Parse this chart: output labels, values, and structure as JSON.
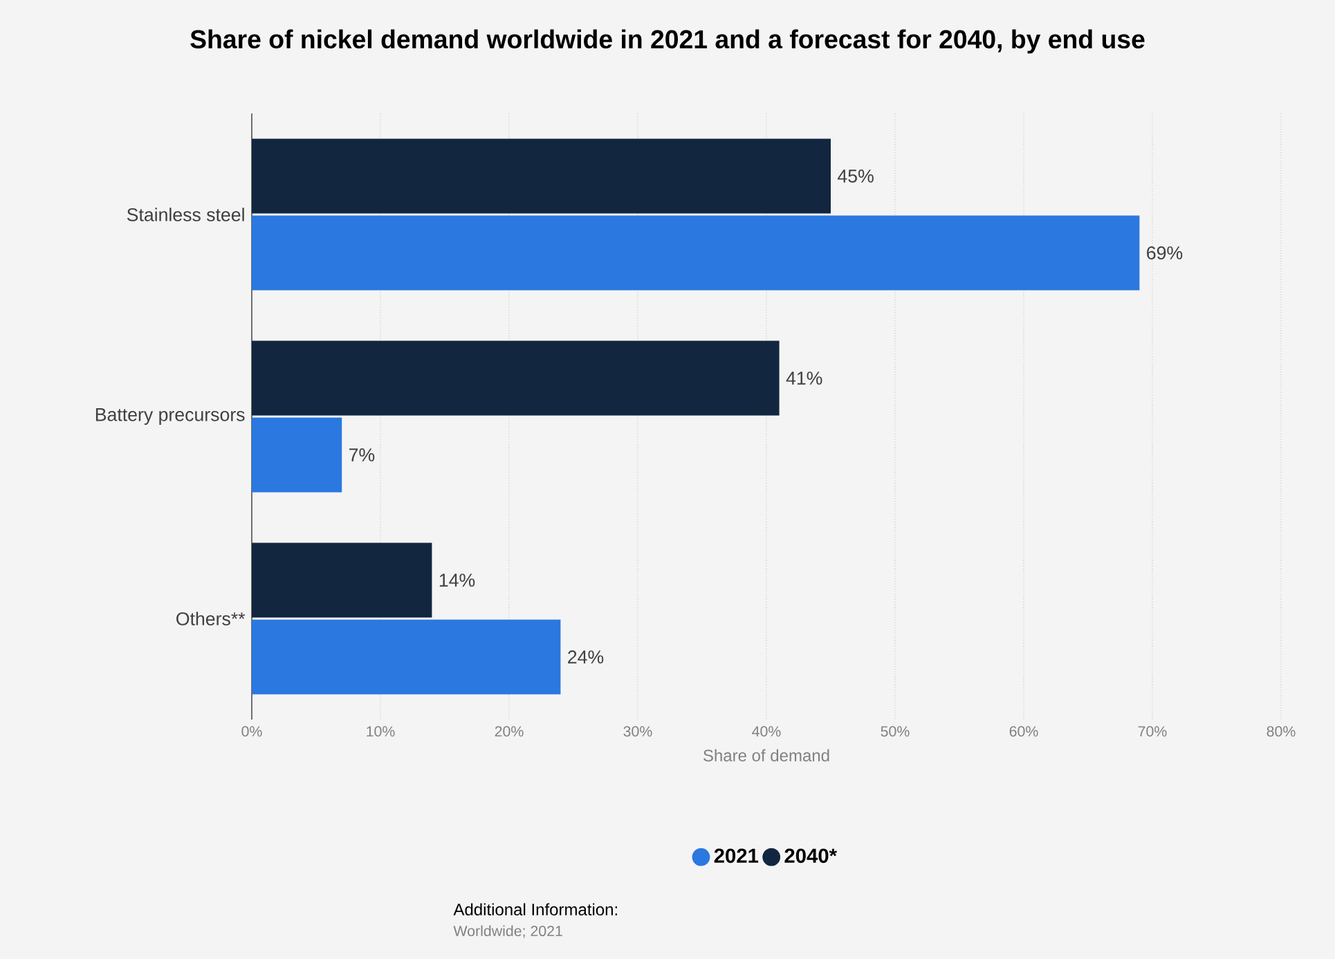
{
  "chart_data": {
    "type": "bar",
    "orientation": "horizontal",
    "title": "Share of nickel demand worldwide in 2021 and a forecast for 2040, by end use",
    "categories": [
      "Stainless steel",
      "Battery precursors",
      "Others**"
    ],
    "series": [
      {
        "name": "2021",
        "color": "#2a78e0",
        "values": [
          69,
          7,
          24
        ],
        "value_labels": [
          "69%",
          "7%",
          "24%"
        ]
      },
      {
        "name": "2040*",
        "color": "#12263f",
        "values": [
          45,
          41,
          14
        ],
        "value_labels": [
          "45%",
          "41%",
          "14%"
        ]
      }
    ],
    "xlabel": "Share of demand",
    "xlim": [
      0,
      80
    ],
    "xticks": [
      {
        "value": 0,
        "label": "0%"
      },
      {
        "value": 10,
        "label": "10%"
      },
      {
        "value": 20,
        "label": "20%"
      },
      {
        "value": 30,
        "label": "30%"
      },
      {
        "value": 40,
        "label": "40%"
      },
      {
        "value": 50,
        "label": "50%"
      },
      {
        "value": 60,
        "label": "60%"
      },
      {
        "value": 70,
        "label": "70%"
      },
      {
        "value": 80,
        "label": "80%"
      }
    ],
    "grid": "x",
    "legend": "bottom",
    "annotations": [
      "Additional Information:",
      "Worldwide; 2021"
    ]
  }
}
